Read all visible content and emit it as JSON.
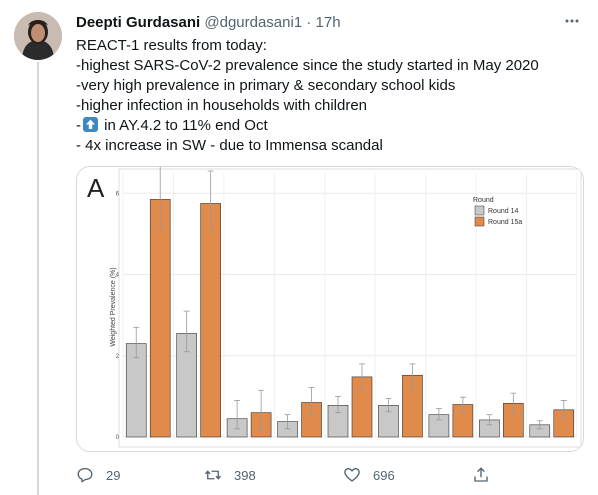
{
  "tweet": {
    "author_name": "Deepti Gurdasani",
    "handle": "@dgurdasani1",
    "dot": "·",
    "time": "17h",
    "lines": [
      "REACT-1 results from today:",
      "-highest SARS-CoV-2 prevalence since the study started in May 2020",
      "-very high prevalence in primary & secondary school kids",
      "-higher infection in households with children"
    ],
    "line5_prefix": "-",
    "line5_emoji": "up-arrow-icon",
    "line5_suffix": " in AY.4.2 to 11% end Oct",
    "line6": "- 4x increase in SW - due to Immensa scandal"
  },
  "actions": {
    "reply_count": "29",
    "retweet_count": "398",
    "like_count": "696"
  },
  "chart_data": {
    "type": "bar",
    "panel_label": "A",
    "ylabel": "Weighted Prevalence (%)",
    "ylim": [
      0,
      6.5
    ],
    "yticks": [
      "0",
      "2",
      "4",
      "6"
    ],
    "legend_title": "Round",
    "grid": true,
    "legend_position": "top-right",
    "categories": [
      "",
      "",
      "",
      "",
      "",
      "",
      "",
      "",
      ""
    ],
    "series": [
      {
        "name": "Round 14",
        "color": "#c8c8c8",
        "values": [
          2.3,
          2.55,
          0.45,
          0.38,
          0.78,
          0.78,
          0.55,
          0.42,
          0.3
        ],
        "err_low": [
          1.95,
          2.1,
          0.2,
          0.2,
          0.6,
          0.62,
          0.42,
          0.3,
          0.2
        ],
        "err_high": [
          2.7,
          3.1,
          0.9,
          0.55,
          1.0,
          0.95,
          0.7,
          0.55,
          0.4
        ]
      },
      {
        "name": "Round 15a",
        "color": "#e08a4b",
        "values": [
          5.85,
          5.75,
          0.6,
          0.85,
          1.48,
          1.52,
          0.8,
          0.83,
          0.67
        ],
        "err_low": [
          5.1,
          5.05,
          0.15,
          0.55,
          1.15,
          1.2,
          0.62,
          0.6,
          0.45
        ],
        "err_high": [
          6.7,
          6.55,
          1.15,
          1.22,
          1.8,
          1.8,
          0.98,
          1.08,
          0.9
        ]
      }
    ]
  },
  "colors": {
    "text": "#0f1419",
    "secondary": "#536471",
    "border": "#cfd9de",
    "avatar_bg": "#b9aaa0"
  }
}
